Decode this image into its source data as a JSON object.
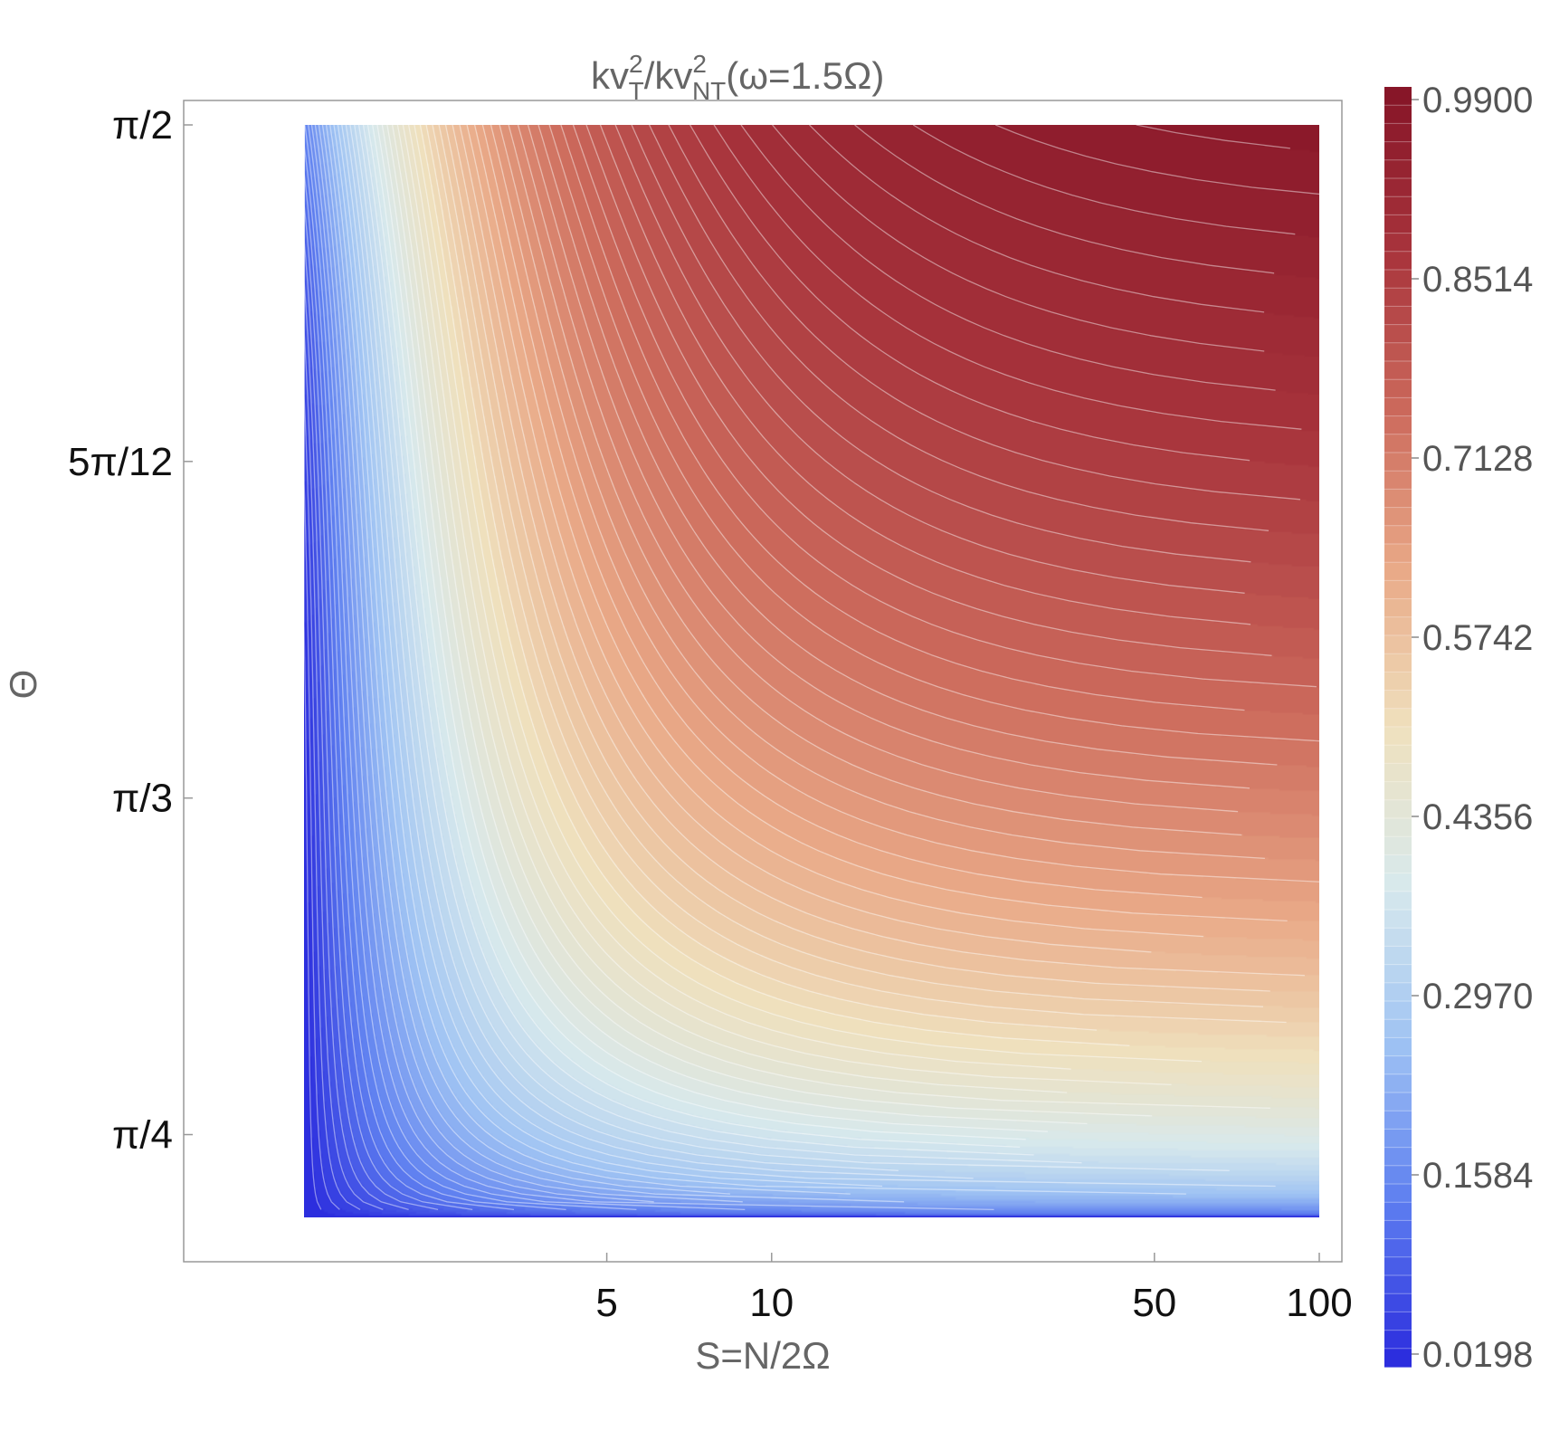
{
  "chart_data": {
    "type": "heatmap",
    "title": {
      "base": "kv",
      "sup1": "2",
      "sub1": "T",
      "mid": "/kv",
      "sup2": "2",
      "sub2": "NT",
      "tail": "(ω=1.5Ω)"
    },
    "xlabel": "S=N/2Ω",
    "ylabel": "Θ",
    "x_scale": "log",
    "x_range": [
      1.4,
      100
    ],
    "x_ticks": [
      {
        "value": 5,
        "label": "5"
      },
      {
        "value": 10,
        "label": "10"
      },
      {
        "value": 50,
        "label": "50"
      },
      {
        "value": 100,
        "label": "100"
      }
    ],
    "y_range_over_pi": [
      0.2295,
      0.5
    ],
    "y_ticks": [
      {
        "value_over_pi": 0.5,
        "label": "π/2"
      },
      {
        "value_over_pi": 0.41667,
        "label": "5π/12"
      },
      {
        "value_over_pi": 0.33333,
        "label": "π/3"
      },
      {
        "value_over_pi": 0.25,
        "label": "π/4"
      }
    ],
    "colorbar": {
      "range": [
        0.0198,
        0.99
      ],
      "ticks": [
        "0.9900",
        "0.8514",
        "0.7128",
        "0.5742",
        "0.4356",
        "0.2970",
        "0.1584",
        "0.0198"
      ],
      "colors": [
        "#2c2ede",
        "#5e7ff0",
        "#9fc3f3",
        "#d8e9ec",
        "#efe0bd",
        "#e9a987",
        "#cc6a5c",
        "#a8343c",
        "#871628"
      ]
    },
    "contour_levels": 70,
    "contour_line_color": "#ffffff",
    "grid": false,
    "legend": "colorbar-right"
  }
}
